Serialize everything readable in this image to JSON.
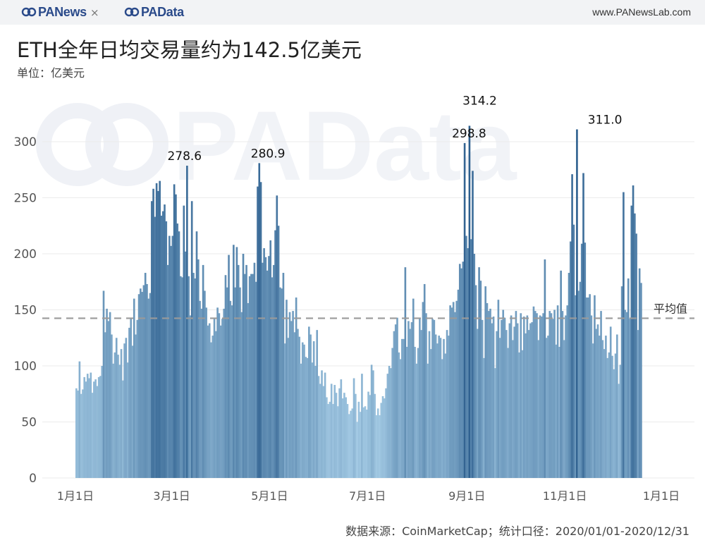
{
  "header": {
    "logo_left": "PANews",
    "separator": "×",
    "logo_right": "PAData",
    "site_url": "www.PANewsLab.com"
  },
  "title": "ETH全年日均交易量约为142.5亿美元",
  "subtitle": "单位：亿美元",
  "footer": "数据来源：CoinMarketCap；统计口径：2020/01/01-2020/12/31",
  "watermark": "PAData",
  "colors": {
    "bar_light": "#a9cfe8",
    "bar_dark": "#2d5f8e",
    "avg_line": "#9a9a9a"
  },
  "chart_data": {
    "type": "bar",
    "x_range": [
      "2020-01-01",
      "2020-12-31"
    ],
    "xticks": [
      {
        "date": "2020-01-01",
        "label": "1月1日"
      },
      {
        "date": "2020-03-01",
        "label": "3月1日"
      },
      {
        "date": "2020-05-01",
        "label": "5月1日"
      },
      {
        "date": "2020-07-01",
        "label": "7月1日"
      },
      {
        "date": "2020-09-01",
        "label": "9月1日"
      },
      {
        "date": "2020-11-01",
        "label": "11月1日"
      },
      {
        "date": "2021-01-01",
        "label": "1月1日"
      }
    ],
    "ylim": [
      0,
      330
    ],
    "yticks": [
      0,
      50,
      100,
      150,
      200,
      250,
      300
    ],
    "average": {
      "value": 142.5,
      "label": "平均值"
    },
    "peaks": [
      {
        "date": "2020-03-09",
        "value": 278.6,
        "label": "278.6"
      },
      {
        "date": "2020-04-30",
        "value": 280.9,
        "label": "280.9"
      },
      {
        "date": "2020-09-05",
        "value": 298.8,
        "label": "298.8"
      },
      {
        "date": "2020-09-09",
        "value": 314.2,
        "label": "314.2"
      },
      {
        "date": "2020-11-26",
        "value": 311.0,
        "label": "311.0"
      }
    ],
    "start_date": "2020-01-01",
    "values": [
      80,
      78,
      104,
      75,
      79,
      90,
      86,
      93,
      89,
      94,
      76,
      86,
      88,
      82,
      90,
      91,
      100,
      167,
      130,
      151,
      140,
      148,
      128,
      102,
      112,
      125,
      110,
      101,
      115,
      87,
      120,
      125,
      103,
      134,
      142,
      118,
      160,
      128,
      141,
      164,
      169,
      166,
      172,
      183,
      173,
      160,
      165,
      247,
      258,
      233,
      263,
      256,
      265,
      234,
      238,
      244,
      229,
      190,
      216,
      207,
      216,
      262,
      253,
      227,
      220,
      180,
      179,
      243,
      202,
      278.6,
      180,
      145,
      247,
      183,
      178,
      220,
      195,
      158,
      151,
      190,
      167,
      152,
      136,
      138,
      121,
      127,
      143,
      131,
      152,
      147,
      136,
      142,
      151,
      181,
      170,
      199,
      158,
      154,
      208,
      170,
      206,
      190,
      170,
      148,
      200,
      182,
      190,
      156,
      180,
      182,
      182,
      192,
      175,
      260,
      280.9,
      264,
      192,
      205,
      197,
      185,
      198,
      212,
      179,
      190,
      221,
      252,
      225,
      170,
      169,
      183,
      120,
      159,
      125,
      148,
      140,
      149,
      130,
      161,
      133,
      126,
      102,
      121,
      119,
      108,
      107,
      135,
      128,
      103,
      122,
      100,
      132,
      91,
      84,
      96,
      82,
      94,
      72,
      66,
      68,
      84,
      66,
      83,
      76,
      64,
      80,
      88,
      71,
      76,
      72,
      66,
      57,
      60,
      62,
      89,
      75,
      50,
      68,
      59,
      93,
      63,
      64,
      61,
      77,
      74,
      101,
      96,
      75,
      56,
      62,
      56,
      67,
      73,
      71,
      80,
      93,
      100,
      98,
      116,
      131,
      137,
      143,
      112,
      106,
      124,
      124,
      188,
      117,
      140,
      133,
      139,
      160,
      117,
      102,
      116,
      142,
      132,
      157,
      173,
      147,
      102,
      131,
      115,
      142,
      141,
      128,
      120,
      127,
      125,
      106,
      124,
      111,
      132,
      127,
      154,
      152,
      157,
      148,
      158,
      168,
      191,
      187,
      193,
      298.8,
      216,
      205,
      314.2,
      213,
      274,
      200,
      172,
      133,
      188,
      176,
      141,
      107,
      171,
      156,
      149,
      151,
      138,
      144,
      98,
      131,
      159,
      125,
      141,
      150,
      143,
      132,
      116,
      138,
      145,
      123,
      135,
      149,
      138,
      112,
      147,
      114,
      144,
      129,
      145,
      132,
      138,
      139,
      153,
      149,
      147,
      123,
      145,
      144,
      147,
      195,
      125,
      127,
      149,
      147,
      142,
      150,
      119,
      154,
      117,
      185,
      149,
      123,
      145,
      154,
      183,
      211,
      271,
      226,
      163,
      311,
      167,
      175,
      209,
      272,
      210,
      161,
      161,
      164,
      145,
      120,
      163,
      133,
      137,
      127,
      149,
      123,
      115,
      127,
      107,
      112,
      135,
      109,
      97,
      111,
      128,
      84,
      101,
      171,
      255,
      150,
      148,
      178,
      142,
      243,
      261,
      236,
      218,
      132,
      187,
      174
    ]
  }
}
